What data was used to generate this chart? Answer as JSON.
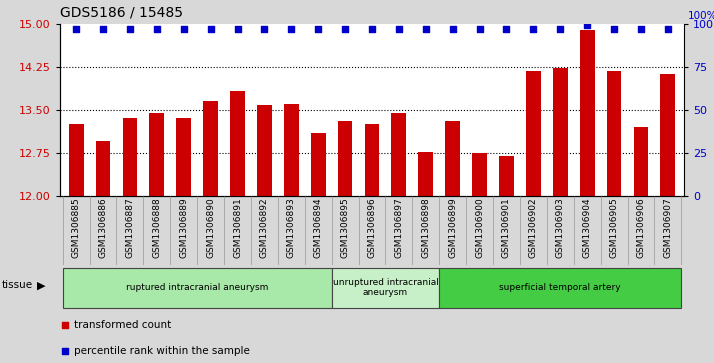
{
  "title": "GDS5186 / 15485",
  "categories": [
    "GSM1306885",
    "GSM1306886",
    "GSM1306887",
    "GSM1306888",
    "GSM1306889",
    "GSM1306890",
    "GSM1306891",
    "GSM1306892",
    "GSM1306893",
    "GSM1306894",
    "GSM1306895",
    "GSM1306896",
    "GSM1306897",
    "GSM1306898",
    "GSM1306899",
    "GSM1306900",
    "GSM1306901",
    "GSM1306902",
    "GSM1306903",
    "GSM1306904",
    "GSM1306905",
    "GSM1306906",
    "GSM1306907"
  ],
  "bar_values": [
    13.25,
    12.95,
    13.35,
    13.45,
    13.35,
    13.65,
    13.82,
    13.58,
    13.6,
    13.1,
    13.3,
    13.25,
    13.45,
    12.77,
    13.3,
    12.75,
    12.7,
    14.18,
    14.22,
    14.88,
    14.18,
    13.2,
    14.12
  ],
  "dot_pcts": [
    97,
    97,
    97,
    97,
    97,
    97,
    97,
    97,
    97,
    97,
    97,
    97,
    97,
    97,
    97,
    97,
    97,
    97,
    97,
    99,
    97,
    97,
    97
  ],
  "ylim_left": [
    12,
    15
  ],
  "yticks_left": [
    12,
    12.75,
    13.5,
    14.25,
    15
  ],
  "yticks_right": [
    0,
    25,
    50,
    75,
    100
  ],
  "bar_color": "#cc0000",
  "dot_color": "#0000cc",
  "background_color": "#d8d8d8",
  "plot_bg_color": "#ffffff",
  "dotted_lines": [
    12.75,
    13.5,
    14.25
  ],
  "groups": [
    {
      "label": "ruptured intracranial aneurysm",
      "start": 0,
      "end": 10,
      "color": "#a8e8a8"
    },
    {
      "label": "unruptured intracranial\naneurysm",
      "start": 10,
      "end": 14,
      "color": "#c8f0c8"
    },
    {
      "label": "superficial temporal artery",
      "start": 14,
      "end": 23,
      "color": "#44cc44"
    }
  ],
  "legend_red_label": "transformed count",
  "legend_blue_label": "percentile rank within the sample",
  "tissue_label": "tissue",
  "title_fontsize": 10,
  "tick_fontsize": 6.5,
  "left_tick_color": "#cc0000",
  "right_tick_color": "#0000cc"
}
